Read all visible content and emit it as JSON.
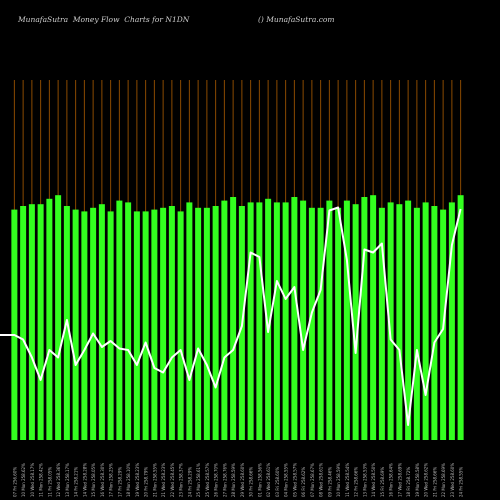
{
  "title": "MunafaSutra  Money Flow  Charts for N1DN",
  "credit": "() MunafaSutra.com",
  "colors": {
    "background": "#000000",
    "bar": "#33ff1f",
    "line": "#ffffff",
    "gridline": "#8a4a00"
  },
  "chart_data": {
    "type": "bar",
    "title": "MunafaSutra  Money Flow  Charts for N1DN",
    "grid": true,
    "categories": [
      "07 Fri 256.60%",
      "10 Mon 258.62%",
      "10 Wed 258.17%",
      "11 Mon 258.42%",
      "11 Fri 258.05%",
      "12 Wed 258.36%",
      "13 Mon 258.17%",
      "14 Fri 258.21%",
      "14 Wed 258.28%",
      "15 Mon 258.05%",
      "16 Wed 258.30%",
      "17 Mon 258.25%",
      "17 Fri 258.29%",
      "18 Mon 258.10%",
      "19 Wed 258.23%",
      "20 Fri 258.79%",
      "21 Mon 258.55%",
      "21 Wed 258.23%",
      "22 Wed 258.45%",
      "23 Mon 258.37%",
      "24 Fri 258.29%",
      "25 Mon 258.61%",
      "25 Wed 258.57%",
      "26 Mon 258.70%",
      "27 Mon 258.76%",
      "28 Mon 258.59%",
      "29 Wed 258.60%",
      "30 Fri 258.66%",
      "01 Mon 258.56%",
      "02 Wed 258.61%",
      "03 Fri 258.60%",
      "04 Mon 258.55%",
      "05 Wed 258.57%",
      "06 Fri 258.62%",
      "07 Mon 258.67%",
      "08 Wed 258.61%",
      "09 Fri 258.46%",
      "10 Mon 258.59%",
      "11 Wed 258.54%",
      "12 Fri 258.66%",
      "13 Mon 258.53%",
      "14 Wed 258.50%",
      "15 Fri 258.69%",
      "16 Mon 258.64%",
      "17 Wed 258.69%",
      "18 Fri 258.72%",
      "19 Mon 258.58%",
      "20 Wed 258.62%",
      "21 Fri 258.66%",
      "22 Mon 258.69%",
      "23 Wed 258.60%",
      "24 Fri 258.55%"
    ],
    "series": [
      {
        "type": "bar",
        "values": [
          64,
          65,
          65.5,
          65.5,
          67,
          68,
          65,
          64,
          63.5,
          64.5,
          65.5,
          63.5,
          66.5,
          66,
          63.5,
          63.5,
          64,
          64.5,
          65,
          63.5,
          66,
          64.5,
          64.5,
          65,
          66.5,
          67.5,
          65,
          66,
          66,
          67,
          66,
          66,
          67.5,
          66.5,
          64.5,
          64.5,
          66.5,
          64.5,
          66.5,
          65.5,
          67.5,
          68,
          64.5,
          66,
          65.5,
          66.5,
          64.5,
          66,
          65,
          64,
          66,
          68
        ]
      },
      {
        "type": "line",
        "values": [
          0,
          -3,
          -15,
          -30,
          -10,
          -15,
          10,
          -20,
          -10,
          1,
          -8,
          -4,
          -9,
          -10,
          -20,
          -5,
          -22,
          -25,
          -15,
          -10,
          -30,
          -9,
          -20,
          -35,
          -15,
          -10,
          6,
          55,
          52,
          2,
          36,
          24,
          32,
          -10,
          15,
          30,
          83,
          85,
          50,
          -12,
          57,
          55,
          61,
          -3,
          -10,
          -60,
          -10,
          -40,
          -5,
          4,
          60,
          84
        ]
      }
    ],
    "xlabel": "",
    "ylabel": "",
    "ylim": [
      -70,
      100
    ]
  }
}
